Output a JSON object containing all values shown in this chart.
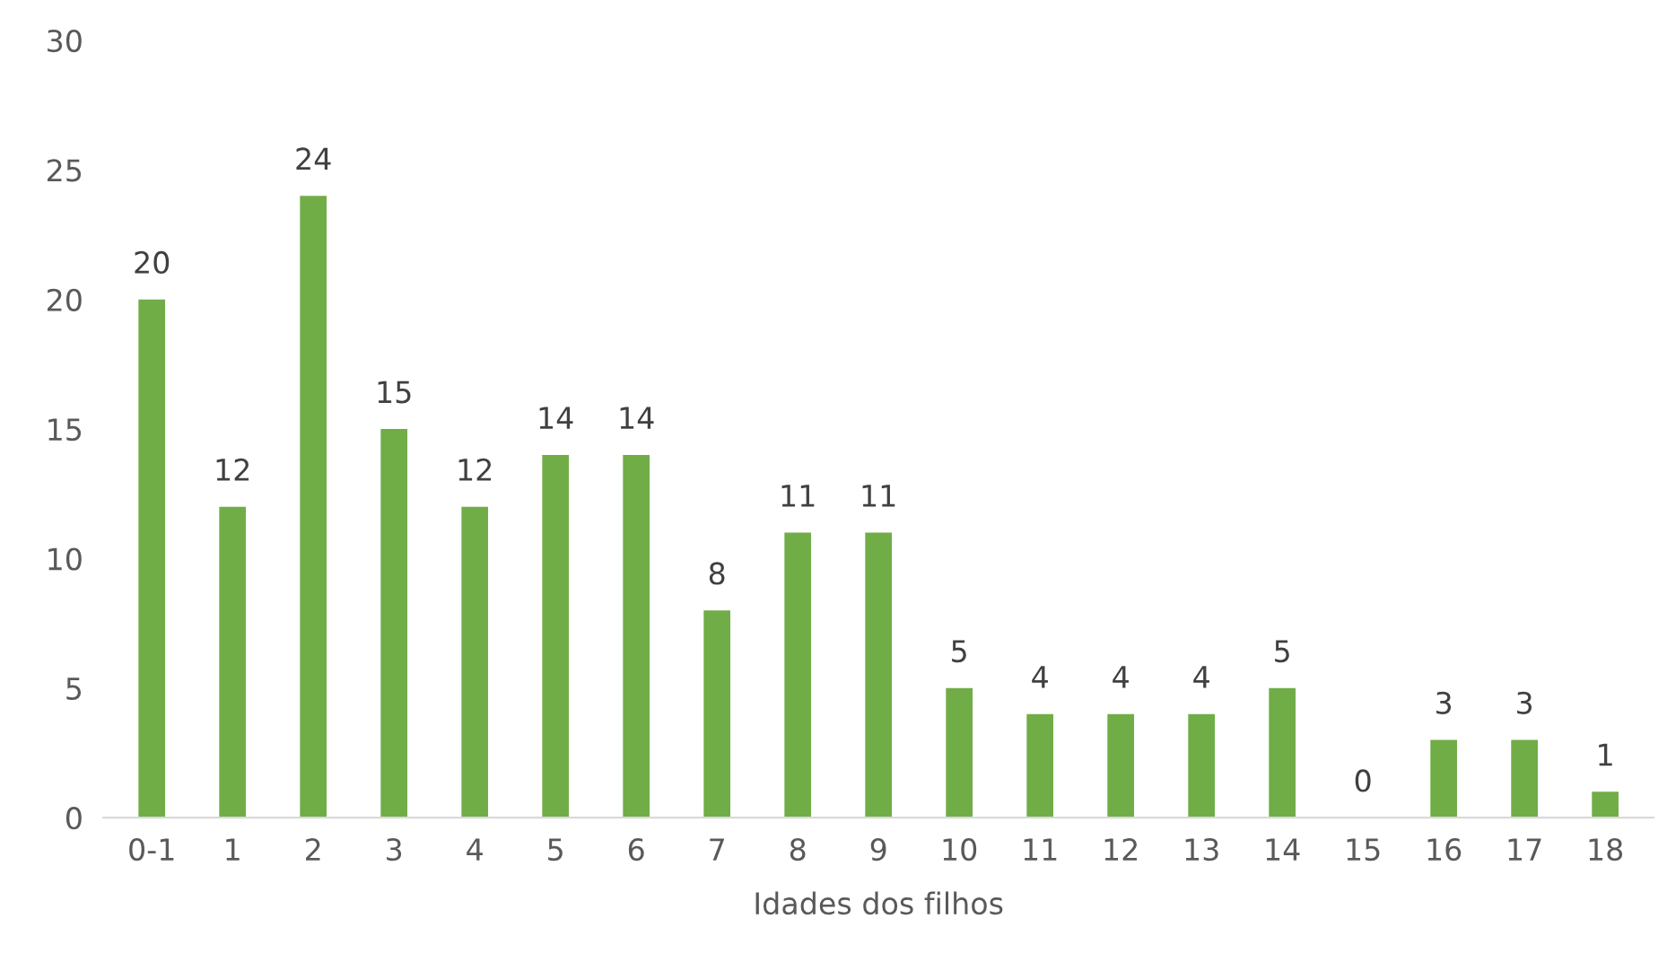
{
  "chart_data": {
    "type": "bar",
    "xlabel": "Idades dos filhos",
    "categories": [
      "0-1",
      "1",
      "2",
      "3",
      "4",
      "5",
      "6",
      "7",
      "8",
      "9",
      "10",
      "11",
      "12",
      "13",
      "14",
      "15",
      "16",
      "17",
      "18"
    ],
    "values": [
      20,
      12,
      24,
      15,
      12,
      14,
      14,
      8,
      11,
      11,
      5,
      4,
      4,
      4,
      5,
      0,
      3,
      3,
      1
    ],
    "color": "#70ad47",
    "ylim": [
      0,
      30
    ],
    "yticks": [
      0,
      5,
      10,
      15,
      20,
      25,
      30
    ],
    "grid": false,
    "data_labels": true
  }
}
